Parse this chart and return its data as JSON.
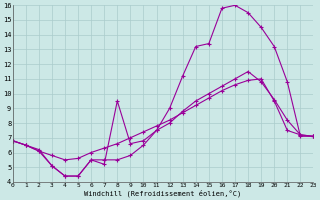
{
  "xlabel": "Windchill (Refroidissement éolien,°C)",
  "background_color": "#cce8e6",
  "grid_color": "#aacccc",
  "line_color": "#990099",
  "xlim": [
    0,
    23
  ],
  "ylim": [
    4,
    16
  ],
  "xticks": [
    0,
    1,
    2,
    3,
    4,
    5,
    6,
    7,
    8,
    9,
    10,
    11,
    12,
    13,
    14,
    15,
    16,
    17,
    18,
    19,
    20,
    21,
    22,
    23
  ],
  "yticks": [
    4,
    5,
    6,
    7,
    8,
    9,
    10,
    11,
    12,
    13,
    14,
    15,
    16
  ],
  "line1_x": [
    0,
    1,
    2,
    3,
    4,
    5,
    6,
    7,
    8,
    9,
    10,
    11,
    12,
    13,
    14,
    15,
    16,
    17,
    18,
    19,
    20,
    21,
    22,
    23
  ],
  "line1_y": [
    6.8,
    6.5,
    6.2,
    5.1,
    4.4,
    4.4,
    5.5,
    5.2,
    9.5,
    6.6,
    6.8,
    7.5,
    8.0,
    8.8,
    9.5,
    10.0,
    10.5,
    11.0,
    11.5,
    10.8,
    9.6,
    8.2,
    7.2,
    7.1
  ],
  "line2_x": [
    0,
    1,
    2,
    3,
    4,
    5,
    6,
    7,
    8,
    9,
    10,
    11,
    12,
    13,
    14,
    15,
    16,
    17,
    18,
    19,
    20,
    21,
    22,
    23
  ],
  "line2_y": [
    6.8,
    6.5,
    6.1,
    5.8,
    5.5,
    5.6,
    6.0,
    6.3,
    6.6,
    7.0,
    7.4,
    7.8,
    8.2,
    8.7,
    9.2,
    9.7,
    10.2,
    10.6,
    10.9,
    11.0,
    9.5,
    7.5,
    7.2,
    7.1
  ],
  "line3_x": [
    0,
    1,
    2,
    3,
    4,
    5,
    6,
    7,
    8,
    9,
    10,
    11,
    12,
    13,
    14,
    15,
    16,
    17,
    18,
    19,
    20,
    21,
    22,
    23
  ],
  "line3_y": [
    6.8,
    6.5,
    6.1,
    5.1,
    4.4,
    4.4,
    5.5,
    5.5,
    5.5,
    5.8,
    6.5,
    7.5,
    9.0,
    11.2,
    13.2,
    13.4,
    15.8,
    16.0,
    15.5,
    14.5,
    13.2,
    10.8,
    7.1,
    7.1
  ]
}
